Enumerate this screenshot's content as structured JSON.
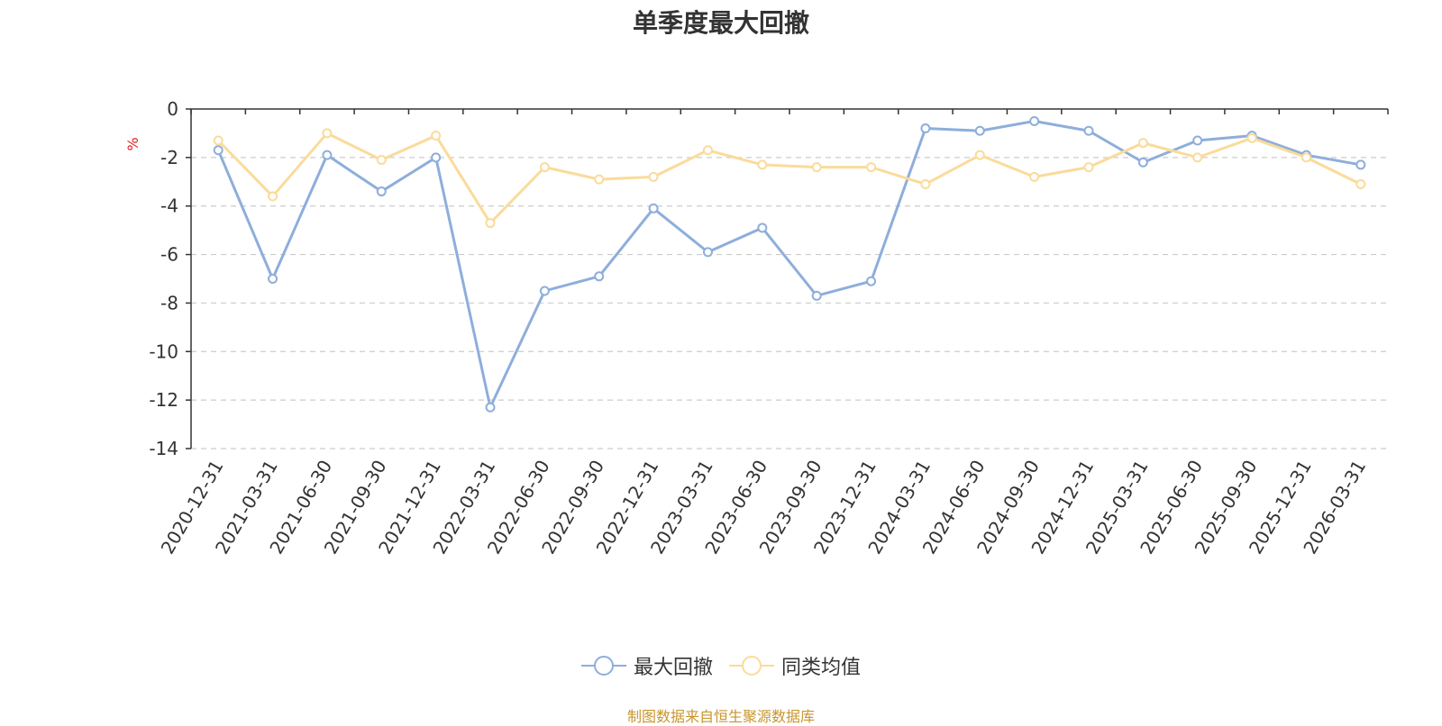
{
  "chart_data": {
    "type": "line",
    "title": "单季度最大回撤",
    "ylabel": "%",
    "ylim": [
      -14,
      0
    ],
    "yticks": [
      0,
      -2,
      -4,
      -6,
      -8,
      -10,
      -12,
      -14
    ],
    "grid": true,
    "legend_position": "bottom",
    "categories": [
      "2020-12-31",
      "2021-03-31",
      "2021-06-30",
      "2021-09-30",
      "2021-12-31",
      "2022-03-31",
      "2022-06-30",
      "2022-09-30",
      "2022-12-31",
      "2023-03-31",
      "2023-06-30",
      "2023-09-30",
      "2023-12-31",
      "2024-03-31",
      "2024-06-30",
      "2024-09-30",
      "2024-12-31",
      "2025-03-31",
      "2025-06-30",
      "2025-09-30",
      "2025-12-31",
      "2026-03-31"
    ],
    "series": [
      {
        "name": "最大回撤",
        "color": "#8eaedb",
        "values": [
          -1.7,
          -7.0,
          -1.9,
          -3.4,
          -2.0,
          -12.3,
          -7.5,
          -6.9,
          -4.1,
          -5.9,
          -4.9,
          -7.7,
          -7.1,
          -0.8,
          -0.9,
          -0.5,
          -0.9,
          -2.2,
          -1.3,
          -1.1,
          -1.9,
          -2.3
        ]
      },
      {
        "name": "同类均值",
        "color": "#fadb9a",
        "values": [
          -1.3,
          -3.6,
          -1.0,
          -2.1,
          -1.1,
          -4.7,
          -2.4,
          -2.9,
          -2.8,
          -1.7,
          -2.3,
          -2.4,
          -2.4,
          -3.1,
          -1.9,
          -2.8,
          -2.4,
          -1.4,
          -2.0,
          -1.2,
          -2.0,
          -3.1
        ]
      }
    ]
  },
  "source_note": "制图数据来自恒生聚源数据库"
}
